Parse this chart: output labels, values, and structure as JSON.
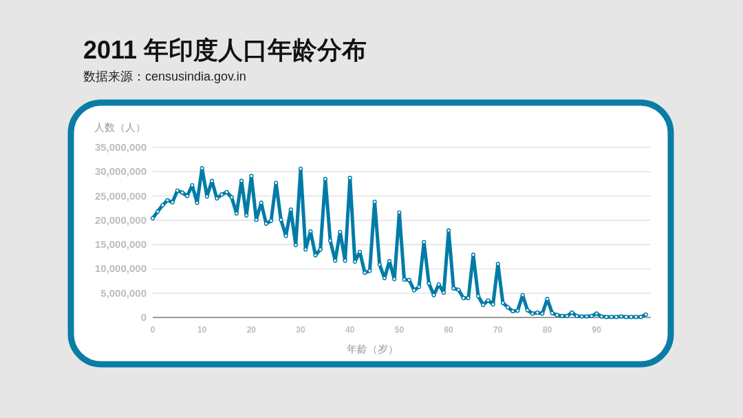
{
  "chart_data": {
    "type": "line",
    "title": "2011 年印度人口年龄分布",
    "subtitle": "数据来源：censusindia.gov.in",
    "xlabel": "年龄（岁）",
    "ylabel": "人数（人）",
    "x": [
      0,
      1,
      2,
      3,
      4,
      5,
      6,
      7,
      8,
      9,
      10,
      11,
      12,
      13,
      14,
      15,
      16,
      17,
      18,
      19,
      20,
      21,
      22,
      23,
      24,
      25,
      26,
      27,
      28,
      29,
      30,
      31,
      32,
      33,
      34,
      35,
      36,
      37,
      38,
      39,
      40,
      41,
      42,
      43,
      44,
      45,
      46,
      47,
      48,
      49,
      50,
      51,
      52,
      53,
      54,
      55,
      56,
      57,
      58,
      59,
      60,
      61,
      62,
      63,
      64,
      65,
      66,
      67,
      68,
      69,
      70,
      71,
      72,
      73,
      74,
      75,
      76,
      77,
      78,
      79,
      80,
      81,
      82,
      83,
      84,
      85,
      86,
      87,
      88,
      89,
      90,
      91,
      92,
      93,
      94,
      95,
      96,
      97,
      98,
      99,
      100
    ],
    "series": [
      {
        "color": "#007ba7",
        "values": [
          20400000,
          21800000,
          23100000,
          24100000,
          23700000,
          26100000,
          25700000,
          25000000,
          27200000,
          23600000,
          30700000,
          24900000,
          28100000,
          24500000,
          25300000,
          25800000,
          24700000,
          21400000,
          28100000,
          21000000,
          29100000,
          20100000,
          23600000,
          19300000,
          19900000,
          27700000,
          20100000,
          16800000,
          22200000,
          14900000,
          30600000,
          14000000,
          17700000,
          12800000,
          14000000,
          28500000,
          15800000,
          11700000,
          17600000,
          11700000,
          28700000,
          11500000,
          13500000,
          9200000,
          9600000,
          23800000,
          10900000,
          8100000,
          11600000,
          7900000,
          21600000,
          7800000,
          7700000,
          5600000,
          6300000,
          15500000,
          7000000,
          4600000,
          6800000,
          5100000,
          17900000,
          6000000,
          5700000,
          4000000,
          4000000,
          12900000,
          4400000,
          2600000,
          3500000,
          2700000,
          11000000,
          3000000,
          2100000,
          1300000,
          1400000,
          4600000,
          1500000,
          800000,
          1000000,
          800000,
          3800000,
          900000,
          500000,
          300000,
          300000,
          1000000,
          300000,
          200000,
          200000,
          300000,
          800000,
          200000,
          100000,
          100000,
          100000,
          200000,
          100000,
          100000,
          100000,
          100000,
          600000
        ]
      }
    ],
    "xlim": [
      0,
      101
    ],
    "xticks": [
      0,
      10,
      20,
      30,
      40,
      50,
      60,
      70,
      80,
      90
    ],
    "ylim": [
      0,
      35000000
    ],
    "yticks": [
      0,
      {
        "value": 5000000,
        "label": "5,000,000"
      },
      {
        "value": 10000000,
        "label": "10,000,000"
      },
      {
        "value": 15000000,
        "label": "15,000,000"
      },
      {
        "value": 20000000,
        "label": "20,000,000"
      },
      {
        "value": 25000000,
        "label": "25,000,000"
      },
      {
        "value": 30000000,
        "label": "30,000,000"
      },
      {
        "value": 35000000,
        "label": "35,000,000"
      }
    ],
    "grid": "y",
    "marker": "circle",
    "line_style": "solid"
  }
}
